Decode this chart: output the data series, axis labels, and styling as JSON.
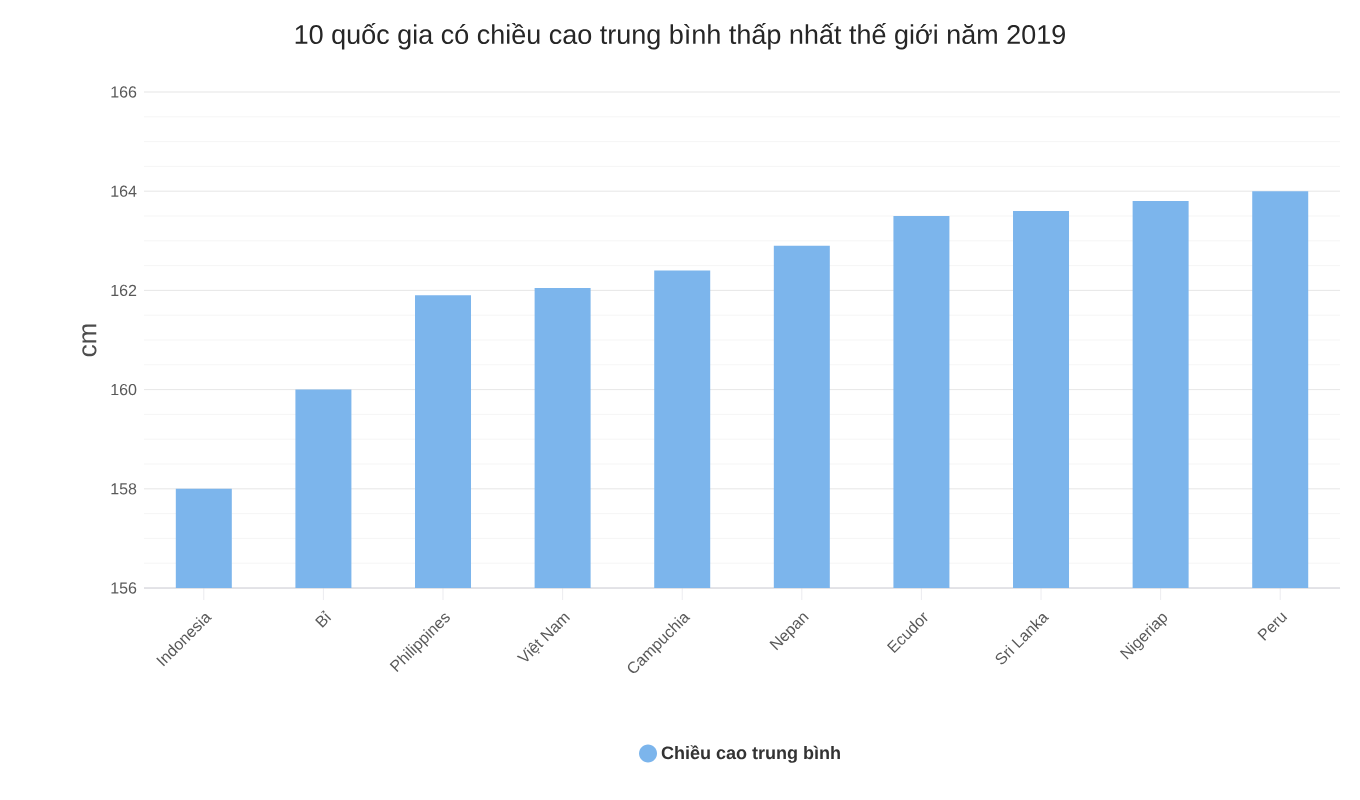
{
  "chart_data": {
    "type": "bar",
    "title": "10 quốc gia có chiều cao trung bình thấp nhất thế giới năm 2019",
    "ylabel": "cm",
    "categories": [
      "Indonesia",
      "Bỉ",
      "Philippines",
      "Việt Nam",
      "Campuchia",
      "Nepan",
      "Ecudor",
      "Sri Lanka",
      "Nigeriap",
      "Peru"
    ],
    "series": [
      {
        "name": "Chiều cao trung bình",
        "color": "#7cb5ec",
        "values": [
          158,
          160,
          161.9,
          162.05,
          162.4,
          162.9,
          163.5,
          163.6,
          163.8,
          164
        ]
      }
    ],
    "ylim": [
      156,
      166
    ],
    "yticks": [
      156,
      158,
      160,
      162,
      164,
      166
    ],
    "grid": "y",
    "legend": "bottom"
  }
}
